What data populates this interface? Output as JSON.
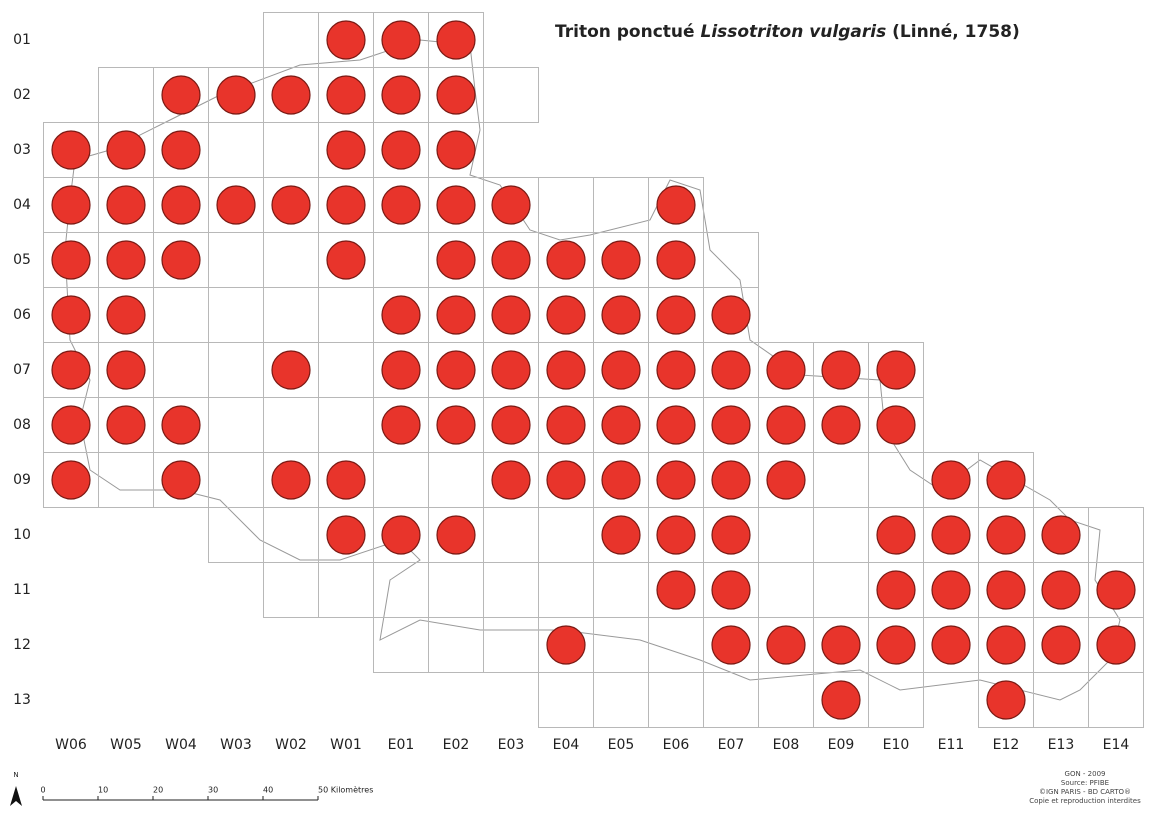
{
  "title": {
    "common_name": "Triton ponctué",
    "latin_name": "Lissotriton vulgaris",
    "author": "(Linné, 1758)"
  },
  "columns": [
    "W06",
    "W05",
    "W04",
    "W03",
    "W02",
    "W01",
    "E01",
    "E02",
    "E03",
    "E04",
    "E05",
    "E06",
    "E07",
    "E08",
    "E09",
    "E10",
    "E11",
    "E12",
    "E13",
    "E14"
  ],
  "rows": [
    {
      "label": "01",
      "cells": [
        "W02",
        "W01",
        "E01",
        "E02"
      ],
      "records": [
        "W01",
        "E01",
        "E02"
      ]
    },
    {
      "label": "02",
      "cells": [
        "W05",
        "W04",
        "W03",
        "W02",
        "W01",
        "E01",
        "E02",
        "E03"
      ],
      "records": [
        "W04",
        "W03",
        "W02",
        "W01",
        "E01",
        "E02"
      ]
    },
    {
      "label": "03",
      "cells": [
        "W06",
        "W05",
        "W04",
        "W03",
        "W02",
        "W01",
        "E01",
        "E02"
      ],
      "records": [
        "W06",
        "W05",
        "W04",
        "W01",
        "E01",
        "E02"
      ]
    },
    {
      "label": "04",
      "cells": [
        "W06",
        "W05",
        "W04",
        "W03",
        "W02",
        "W01",
        "E01",
        "E02",
        "E03",
        "E04",
        "E05",
        "E06"
      ],
      "records": [
        "W06",
        "W05",
        "W04",
        "W03",
        "W02",
        "W01",
        "E01",
        "E02",
        "E03",
        "E06"
      ]
    },
    {
      "label": "05",
      "cells": [
        "W06",
        "W05",
        "W04",
        "W03",
        "W02",
        "W01",
        "E01",
        "E02",
        "E03",
        "E04",
        "E05",
        "E06",
        "E07"
      ],
      "records": [
        "W06",
        "W05",
        "W04",
        "W01",
        "E02",
        "E03",
        "E04",
        "E05",
        "E06"
      ]
    },
    {
      "label": "06",
      "cells": [
        "W06",
        "W05",
        "W04",
        "W03",
        "W02",
        "W01",
        "E01",
        "E02",
        "E03",
        "E04",
        "E05",
        "E06",
        "E07"
      ],
      "records": [
        "W06",
        "W05",
        "E01",
        "E02",
        "E03",
        "E04",
        "E05",
        "E06",
        "E07"
      ]
    },
    {
      "label": "07",
      "cells": [
        "W06",
        "W05",
        "W04",
        "W03",
        "W02",
        "W01",
        "E01",
        "E02",
        "E03",
        "E04",
        "E05",
        "E06",
        "E07",
        "E08",
        "E09",
        "E10"
      ],
      "records": [
        "W06",
        "W05",
        "W02",
        "E01",
        "E02",
        "E03",
        "E04",
        "E05",
        "E06",
        "E07",
        "E08",
        "E09",
        "E10"
      ]
    },
    {
      "label": "08",
      "cells": [
        "W06",
        "W05",
        "W04",
        "W03",
        "W02",
        "W01",
        "E01",
        "E02",
        "E03",
        "E04",
        "E05",
        "E06",
        "E07",
        "E08",
        "E09",
        "E10"
      ],
      "records": [
        "W06",
        "W05",
        "W04",
        "E01",
        "E02",
        "E03",
        "E04",
        "E05",
        "E06",
        "E07",
        "E08",
        "E09",
        "E10"
      ]
    },
    {
      "label": "09",
      "cells": [
        "W06",
        "W05",
        "W04",
        "W03",
        "W02",
        "W01",
        "E01",
        "E02",
        "E03",
        "E04",
        "E05",
        "E06",
        "E07",
        "E08",
        "E09",
        "E10",
        "E11",
        "E12"
      ],
      "records": [
        "W06",
        "W04",
        "W02",
        "W01",
        "E03",
        "E04",
        "E05",
        "E06",
        "E07",
        "E08",
        "E11",
        "E12"
      ]
    },
    {
      "label": "10",
      "cells": [
        "W03",
        "W02",
        "W01",
        "E01",
        "E02",
        "E03",
        "E04",
        "E05",
        "E06",
        "E07",
        "E08",
        "E09",
        "E10",
        "E11",
        "E12",
        "E13",
        "E14"
      ],
      "records": [
        "W01",
        "E01",
        "E02",
        "E05",
        "E06",
        "E07",
        "E10",
        "E11",
        "E12",
        "E13"
      ]
    },
    {
      "label": "11",
      "cells": [
        "W02",
        "W01",
        "E01",
        "E02",
        "E03",
        "E04",
        "E05",
        "E06",
        "E07",
        "E08",
        "E09",
        "E10",
        "E11",
        "E12",
        "E13",
        "E14"
      ],
      "records": [
        "E06",
        "E07",
        "E10",
        "E11",
        "E12",
        "E13",
        "E14"
      ]
    },
    {
      "label": "12",
      "cells": [
        "E01",
        "E02",
        "E03",
        "E04",
        "E05",
        "E06",
        "E07",
        "E08",
        "E09",
        "E10",
        "E11",
        "E12",
        "E13",
        "E14"
      ],
      "records": [
        "E04",
        "E07",
        "E08",
        "E09",
        "E10",
        "E11",
        "E12",
        "E13",
        "E14"
      ]
    },
    {
      "label": "13",
      "cells": [
        "E04",
        "E05",
        "E06",
        "E07",
        "E08",
        "E09",
        "E10",
        "E12",
        "E13",
        "E14"
      ],
      "records": [
        "E09",
        "E12"
      ]
    }
  ],
  "scale": {
    "north": "N",
    "labels": [
      "0",
      "10",
      "20",
      "30",
      "40",
      "50 Kilomètres"
    ]
  },
  "credits": [
    "GON - 2009",
    "Source: PFIBE",
    "©IGN PARIS - BD CARTO®",
    "Copie et reproduction interdites"
  ]
}
